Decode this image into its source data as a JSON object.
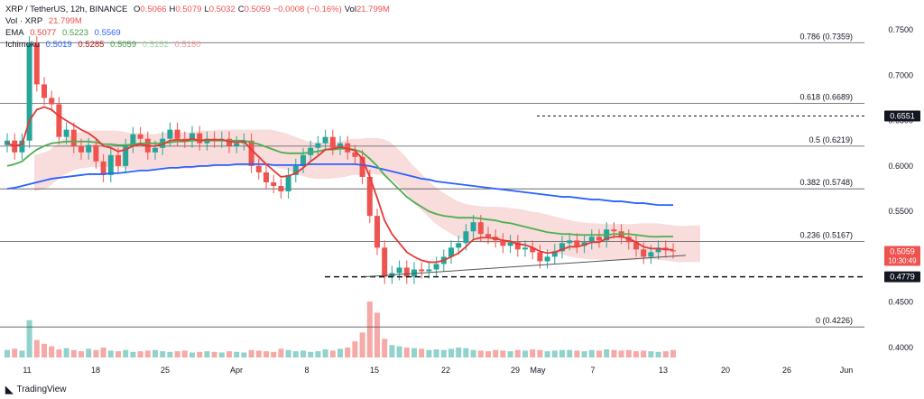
{
  "legend": {
    "title": "XRP / TetherUS, 12h, BINANCE",
    "ohlc": [
      {
        "k": "O",
        "v": "0.5066"
      },
      {
        "k": "H",
        "v": "0.5079"
      },
      {
        "k": "L",
        "v": "0.5032"
      },
      {
        "k": "C",
        "v": "0.5059"
      },
      {
        "k": "",
        "v": "−0.0008 (−0.16%)"
      },
      {
        "k": "Vol",
        "v": "21.799M"
      }
    ],
    "vol_label": "Vol · XRP",
    "vol_value": "21.799M",
    "ema_label": "EMA",
    "ema_values": [
      "0.5077",
      "0.5223",
      "0.5569"
    ],
    "ichimoku_label": "Ichimoku",
    "ichimoku_values": [
      "0.5019",
      "0.5285",
      "0.5059",
      "0.5152",
      "0.5180"
    ]
  },
  "footer": {
    "brand": "TradingView"
  },
  "colors": {
    "up": "#26a69a",
    "down": "#ef5350",
    "ema_fast": "#e53935",
    "ema_mid": "#4caf50",
    "ema_slow": "#2962ff",
    "conversion": "#2962ff",
    "base": "#b71c1c",
    "lagging": "#43a047",
    "cloud_up": "#a5d6a7",
    "cloud_down": "#ef9a9a"
  },
  "chart_data": {
    "type": "line",
    "title": "XRP / TetherUS, 12h, BINANCE",
    "ylim": [
      0.385,
      0.765
    ],
    "y_ticks": [
      "0.7500",
      "0.7000",
      "0.6500",
      "0.6000",
      "0.5500",
      "0.5000",
      "0.4500",
      "0.4000"
    ],
    "x_ticks": [
      "11",
      "18",
      "25",
      "Apr",
      "8",
      "15",
      "22",
      "29",
      "May",
      "7",
      "13",
      "20",
      "26",
      "Jun"
    ],
    "fib_levels": [
      {
        "label": "0.786 (0.7359)",
        "value": 0.7359
      },
      {
        "label": "0.618 (0.6689)",
        "value": 0.6689
      },
      {
        "label": "0.5 (0.6219)",
        "value": 0.6219
      },
      {
        "label": "0.382 (0.5748)",
        "value": 0.5748
      },
      {
        "label": "0.236 (0.5167)",
        "value": 0.5167
      },
      {
        "label": "0 (0.4226)",
        "value": 0.4226
      }
    ],
    "price_tags": [
      {
        "label": "0.6551",
        "value": 0.6551,
        "style": "resistance"
      },
      {
        "label": "0.5059",
        "value": 0.5059,
        "style": "current",
        "sub": "10:30:49"
      },
      {
        "label": "0.4779",
        "value": 0.4779,
        "style": "support"
      }
    ],
    "price_close": [
      0.628,
      0.615,
      0.628,
      0.735,
      0.69,
      0.675,
      0.668,
      0.632,
      0.64,
      0.622,
      0.615,
      0.623,
      0.605,
      0.59,
      0.612,
      0.6,
      0.622,
      0.635,
      0.63,
      0.615,
      0.62,
      0.63,
      0.64,
      0.63,
      0.628,
      0.636,
      0.625,
      0.63,
      0.628,
      0.63,
      0.622,
      0.625,
      0.628,
      0.6,
      0.593,
      0.582,
      0.578,
      0.572,
      0.59,
      0.6,
      0.612,
      0.62,
      0.625,
      0.632,
      0.62,
      0.625,
      0.615,
      0.61,
      0.588,
      0.545,
      0.51,
      0.478,
      0.482,
      0.488,
      0.478,
      0.486,
      0.484,
      0.486,
      0.492,
      0.5,
      0.51,
      0.515,
      0.528,
      0.538,
      0.525,
      0.522,
      0.518,
      0.512,
      0.516,
      0.508,
      0.51,
      0.505,
      0.495,
      0.5,
      0.506,
      0.515,
      0.518,
      0.512,
      0.516,
      0.522,
      0.518,
      0.53,
      0.528,
      0.522,
      0.516,
      0.508,
      0.5,
      0.505,
      0.51,
      0.507,
      0.5059
    ],
    "ema_fast": [
      0.625,
      0.622,
      0.624,
      0.65,
      0.662,
      0.665,
      0.662,
      0.655,
      0.65,
      0.645,
      0.64,
      0.636,
      0.63,
      0.622,
      0.62,
      0.616,
      0.618,
      0.622,
      0.624,
      0.622,
      0.622,
      0.624,
      0.628,
      0.629,
      0.628,
      0.63,
      0.628,
      0.629,
      0.629,
      0.629,
      0.627,
      0.626,
      0.627,
      0.618,
      0.61,
      0.602,
      0.595,
      0.588,
      0.589,
      0.592,
      0.598,
      0.605,
      0.611,
      0.618,
      0.619,
      0.621,
      0.619,
      0.617,
      0.608,
      0.588,
      0.565,
      0.54,
      0.525,
      0.515,
      0.505,
      0.5,
      0.496,
      0.494,
      0.494,
      0.496,
      0.5,
      0.504,
      0.511,
      0.519,
      0.521,
      0.521,
      0.52,
      0.518,
      0.517,
      0.514,
      0.513,
      0.51,
      0.506,
      0.504,
      0.505,
      0.508,
      0.511,
      0.511,
      0.513,
      0.516,
      0.516,
      0.52,
      0.522,
      0.522,
      0.52,
      0.516,
      0.511,
      0.509,
      0.509,
      0.508,
      0.5077
    ],
    "ema_mid": [
      0.6,
      0.602,
      0.605,
      0.612,
      0.618,
      0.622,
      0.625,
      0.626,
      0.627,
      0.627,
      0.627,
      0.627,
      0.626,
      0.624,
      0.624,
      0.623,
      0.623,
      0.624,
      0.625,
      0.625,
      0.625,
      0.625,
      0.626,
      0.627,
      0.627,
      0.628,
      0.628,
      0.628,
      0.628,
      0.628,
      0.628,
      0.628,
      0.628,
      0.626,
      0.624,
      0.621,
      0.618,
      0.615,
      0.614,
      0.614,
      0.614,
      0.615,
      0.616,
      0.618,
      0.618,
      0.619,
      0.619,
      0.618,
      0.615,
      0.608,
      0.6,
      0.59,
      0.582,
      0.574,
      0.566,
      0.56,
      0.555,
      0.55,
      0.547,
      0.545,
      0.544,
      0.543,
      0.543,
      0.543,
      0.542,
      0.541,
      0.54,
      0.538,
      0.537,
      0.535,
      0.533,
      0.531,
      0.529,
      0.527,
      0.526,
      0.525,
      0.525,
      0.524,
      0.524,
      0.524,
      0.524,
      0.524,
      0.525,
      0.525,
      0.525,
      0.524,
      0.523,
      0.522,
      0.522,
      0.5223,
      0.5223
    ],
    "ema_slow": [
      0.575,
      0.576,
      0.578,
      0.58,
      0.582,
      0.584,
      0.586,
      0.587,
      0.588,
      0.589,
      0.59,
      0.591,
      0.591,
      0.591,
      0.592,
      0.592,
      0.593,
      0.594,
      0.595,
      0.595,
      0.596,
      0.597,
      0.598,
      0.598,
      0.599,
      0.599,
      0.6,
      0.6,
      0.601,
      0.601,
      0.601,
      0.602,
      0.602,
      0.602,
      0.602,
      0.602,
      0.601,
      0.601,
      0.601,
      0.601,
      0.601,
      0.602,
      0.602,
      0.602,
      0.602,
      0.602,
      0.602,
      0.602,
      0.601,
      0.6,
      0.598,
      0.596,
      0.594,
      0.592,
      0.59,
      0.588,
      0.586,
      0.585,
      0.583,
      0.582,
      0.581,
      0.58,
      0.579,
      0.578,
      0.577,
      0.576,
      0.575,
      0.574,
      0.573,
      0.572,
      0.571,
      0.57,
      0.569,
      0.568,
      0.567,
      0.566,
      0.566,
      0.565,
      0.564,
      0.563,
      0.563,
      0.562,
      0.561,
      0.561,
      0.56,
      0.559,
      0.559,
      0.558,
      0.557,
      0.557,
      0.5569
    ],
    "volume": [
      12,
      14,
      11,
      60,
      28,
      22,
      18,
      13,
      15,
      12,
      10,
      14,
      12,
      16,
      11,
      10,
      12,
      9,
      10,
      11,
      12,
      10,
      9,
      10,
      11,
      8,
      9,
      10,
      9,
      8,
      10,
      9,
      8,
      12,
      11,
      10,
      9,
      14,
      12,
      10,
      11,
      9,
      10,
      13,
      11,
      14,
      16,
      26,
      40,
      90,
      72,
      30,
      20,
      18,
      16,
      15,
      14,
      12,
      13,
      12,
      14,
      16,
      15,
      12,
      11,
      10,
      12,
      11,
      10,
      12,
      11,
      13,
      12,
      10,
      11,
      12,
      12,
      11,
      10,
      12,
      11,
      13,
      12,
      11,
      12,
      10,
      11,
      10,
      9,
      10,
      12
    ]
  }
}
